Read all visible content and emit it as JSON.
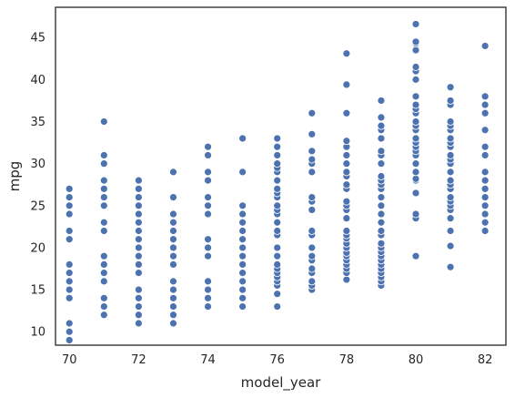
{
  "chart_data": {
    "type": "scatter",
    "title": "",
    "xlabel": "model_year",
    "ylabel": "mpg",
    "xlim": [
      69.6,
      82.6
    ],
    "ylim": [
      8.4,
      48.6
    ],
    "xticks": [
      70,
      72,
      74,
      76,
      78,
      80,
      82
    ],
    "yticks": [
      10,
      15,
      20,
      25,
      30,
      35,
      40,
      45
    ],
    "grid": false,
    "legend": "none",
    "color": "#4c72b0",
    "series": [
      {
        "points": [
          [
            70,
            9
          ],
          [
            70,
            10
          ],
          [
            70,
            11
          ],
          [
            70,
            14
          ],
          [
            70,
            15
          ],
          [
            70,
            16
          ],
          [
            70,
            17
          ],
          [
            70,
            18
          ],
          [
            70,
            21
          ],
          [
            70,
            22
          ],
          [
            70,
            24
          ],
          [
            70,
            25
          ],
          [
            70,
            26
          ],
          [
            70,
            27
          ],
          [
            71,
            12
          ],
          [
            71,
            13
          ],
          [
            71,
            14
          ],
          [
            71,
            16
          ],
          [
            71,
            17
          ],
          [
            71,
            18
          ],
          [
            71,
            19
          ],
          [
            71,
            22
          ],
          [
            71,
            23
          ],
          [
            71,
            25
          ],
          [
            71,
            26
          ],
          [
            71,
            27
          ],
          [
            71,
            28
          ],
          [
            71,
            30
          ],
          [
            71,
            31
          ],
          [
            71,
            35
          ],
          [
            72,
            11
          ],
          [
            72,
            12
          ],
          [
            72,
            13
          ],
          [
            72,
            14
          ],
          [
            72,
            15
          ],
          [
            72,
            17
          ],
          [
            72,
            18
          ],
          [
            72,
            19
          ],
          [
            72,
            20
          ],
          [
            72,
            21
          ],
          [
            72,
            22
          ],
          [
            72,
            23
          ],
          [
            72,
            24
          ],
          [
            72,
            25
          ],
          [
            72,
            26
          ],
          [
            72,
            27
          ],
          [
            72,
            28
          ],
          [
            73,
            11
          ],
          [
            73,
            12
          ],
          [
            73,
            13
          ],
          [
            73,
            14
          ],
          [
            73,
            15
          ],
          [
            73,
            16
          ],
          [
            73,
            18
          ],
          [
            73,
            19
          ],
          [
            73,
            20
          ],
          [
            73,
            21
          ],
          [
            73,
            22
          ],
          [
            73,
            23
          ],
          [
            73,
            24
          ],
          [
            73,
            26
          ],
          [
            73,
            29
          ],
          [
            74,
            13
          ],
          [
            74,
            14
          ],
          [
            74,
            15
          ],
          [
            74,
            16
          ],
          [
            74,
            19
          ],
          [
            74,
            20
          ],
          [
            74,
            21
          ],
          [
            74,
            24
          ],
          [
            74,
            25
          ],
          [
            74,
            26
          ],
          [
            74,
            28
          ],
          [
            74,
            29
          ],
          [
            74,
            31
          ],
          [
            74,
            32
          ],
          [
            75,
            13
          ],
          [
            75,
            14
          ],
          [
            75,
            15
          ],
          [
            75,
            16
          ],
          [
            75,
            17
          ],
          [
            75,
            18
          ],
          [
            75,
            19
          ],
          [
            75,
            20
          ],
          [
            75,
            21
          ],
          [
            75,
            22
          ],
          [
            75,
            23
          ],
          [
            75,
            24
          ],
          [
            75,
            25
          ],
          [
            75,
            29
          ],
          [
            75,
            33
          ],
          [
            76,
            13
          ],
          [
            76,
            14.5
          ],
          [
            76,
            15.5
          ],
          [
            76,
            16
          ],
          [
            76,
            16.5
          ],
          [
            76,
            17
          ],
          [
            76,
            17.5
          ],
          [
            76,
            18
          ],
          [
            76,
            19
          ],
          [
            76,
            20
          ],
          [
            76,
            21.5
          ],
          [
            76,
            22
          ],
          [
            76,
            23
          ],
          [
            76,
            24
          ],
          [
            76,
            24.5
          ],
          [
            76,
            25
          ],
          [
            76,
            26
          ],
          [
            76,
            26.5
          ],
          [
            76,
            27
          ],
          [
            76,
            28
          ],
          [
            76,
            29
          ],
          [
            76,
            29.5
          ],
          [
            76,
            30
          ],
          [
            76,
            31
          ],
          [
            76,
            32
          ],
          [
            76,
            33
          ],
          [
            77,
            15
          ],
          [
            77,
            15.5
          ],
          [
            77,
            16
          ],
          [
            77,
            17
          ],
          [
            77,
            17.5
          ],
          [
            77,
            18.5
          ],
          [
            77,
            19
          ],
          [
            77,
            20
          ],
          [
            77,
            21.5
          ],
          [
            77,
            22
          ],
          [
            77,
            24.5
          ],
          [
            77,
            25.5
          ],
          [
            77,
            26
          ],
          [
            77,
            29
          ],
          [
            77,
            30
          ],
          [
            77,
            30.5
          ],
          [
            77,
            31.5
          ],
          [
            77,
            33.5
          ],
          [
            77,
            36
          ],
          [
            78,
            16.2
          ],
          [
            78,
            17
          ],
          [
            78,
            17.5
          ],
          [
            78,
            18
          ],
          [
            78,
            18.5
          ],
          [
            78,
            19
          ],
          [
            78,
            19.4
          ],
          [
            78,
            20
          ],
          [
            78,
            20.5
          ],
          [
            78,
            21.1
          ],
          [
            78,
            21.5
          ],
          [
            78,
            22
          ],
          [
            78,
            23.5
          ],
          [
            78,
            24.5
          ],
          [
            78,
            25
          ],
          [
            78,
            25.5
          ],
          [
            78,
            27
          ],
          [
            78,
            27.5
          ],
          [
            78,
            28.5
          ],
          [
            78,
            29
          ],
          [
            78,
            30
          ],
          [
            78,
            31
          ],
          [
            78,
            32
          ],
          [
            78,
            32.7
          ],
          [
            78,
            36
          ],
          [
            78,
            39.4
          ],
          [
            78,
            43.1
          ],
          [
            79,
            15.5
          ],
          [
            79,
            16
          ],
          [
            79,
            16.5
          ],
          [
            79,
            17
          ],
          [
            79,
            17.5
          ],
          [
            79,
            18
          ],
          [
            79,
            18.5
          ],
          [
            79,
            19
          ],
          [
            79,
            19.5
          ],
          [
            79,
            20
          ],
          [
            79,
            20.5
          ],
          [
            79,
            21.5
          ],
          [
            79,
            22
          ],
          [
            79,
            23
          ],
          [
            79,
            24
          ],
          [
            79,
            25
          ],
          [
            79,
            26
          ],
          [
            79,
            27
          ],
          [
            79,
            27.5
          ],
          [
            79,
            28
          ],
          [
            79,
            28.5
          ],
          [
            79,
            30
          ],
          [
            79,
            31
          ],
          [
            79,
            31.5
          ],
          [
            79,
            33
          ],
          [
            79,
            34
          ],
          [
            79,
            34.5
          ],
          [
            79,
            35.5
          ],
          [
            79,
            37.5
          ],
          [
            80,
            19
          ],
          [
            80,
            23.5
          ],
          [
            80,
            24
          ],
          [
            80,
            26.5
          ],
          [
            80,
            28
          ],
          [
            80,
            28.2
          ],
          [
            80,
            29
          ],
          [
            80,
            30
          ],
          [
            80,
            31
          ],
          [
            80,
            31.5
          ],
          [
            80,
            32
          ],
          [
            80,
            32.5
          ],
          [
            80,
            33
          ],
          [
            80,
            34
          ],
          [
            80,
            34.5
          ],
          [
            80,
            35
          ],
          [
            80,
            36
          ],
          [
            80,
            36.5
          ],
          [
            80,
            37
          ],
          [
            80,
            38
          ],
          [
            80,
            40
          ],
          [
            80,
            41
          ],
          [
            80,
            41.5
          ],
          [
            80,
            43.5
          ],
          [
            80,
            44.3
          ],
          [
            80,
            44.5
          ],
          [
            80,
            46.6
          ],
          [
            81,
            17.7
          ],
          [
            81,
            20.2
          ],
          [
            81,
            22
          ],
          [
            81,
            23.5
          ],
          [
            81,
            24.5
          ],
          [
            81,
            25
          ],
          [
            81,
            25.5
          ],
          [
            81,
            26
          ],
          [
            81,
            27
          ],
          [
            81,
            27.5
          ],
          [
            81,
            28
          ],
          [
            81,
            29
          ],
          [
            81,
            30
          ],
          [
            81,
            30.5
          ],
          [
            81,
            31
          ],
          [
            81,
            32
          ],
          [
            81,
            32.5
          ],
          [
            81,
            33
          ],
          [
            81,
            34
          ],
          [
            81,
            34.5
          ],
          [
            81,
            35
          ],
          [
            81,
            37
          ],
          [
            81,
            37.5
          ],
          [
            81,
            39
          ],
          [
            81,
            39.1
          ],
          [
            82,
            22
          ],
          [
            82,
            23
          ],
          [
            82,
            24
          ],
          [
            82,
            25
          ],
          [
            82,
            26
          ],
          [
            82,
            27
          ],
          [
            82,
            28
          ],
          [
            82,
            29
          ],
          [
            82,
            31
          ],
          [
            82,
            32
          ],
          [
            82,
            34
          ],
          [
            82,
            36
          ],
          [
            82,
            37
          ],
          [
            82,
            38
          ],
          [
            82,
            44
          ]
        ]
      }
    ]
  }
}
